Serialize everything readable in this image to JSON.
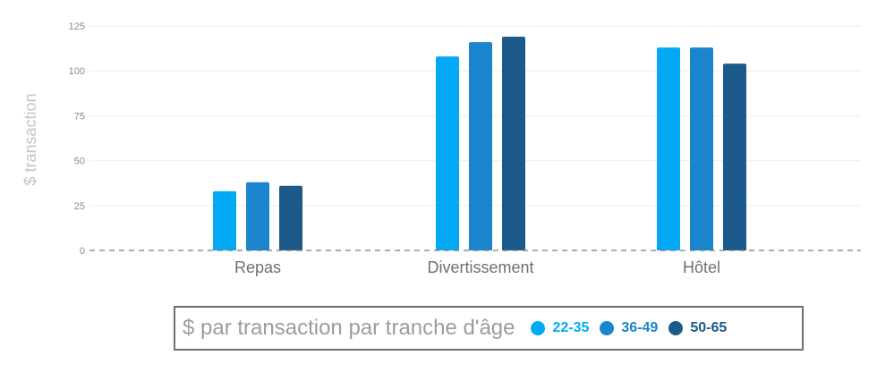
{
  "chart_data": {
    "type": "bar",
    "title": "",
    "xlabel": "",
    "ylabel": "$ transaction",
    "ylim": [
      0,
      125
    ],
    "yticks": [
      0,
      25,
      50,
      75,
      100,
      125
    ],
    "grid": true,
    "legend_placement": "bottom",
    "legend_title": "$ par transaction par tranche d'âge",
    "categories": [
      "Repas",
      "Divertissement",
      "Hôtel"
    ],
    "series": [
      {
        "name": "22-35",
        "color": "#03a9f4",
        "values": [
          33,
          108,
          113
        ]
      },
      {
        "name": "36-49",
        "color": "#1a84cd",
        "values": [
          38,
          116,
          113
        ]
      },
      {
        "name": "50-65",
        "color": "#1b5a8a",
        "values": [
          36,
          119,
          104
        ]
      }
    ]
  }
}
